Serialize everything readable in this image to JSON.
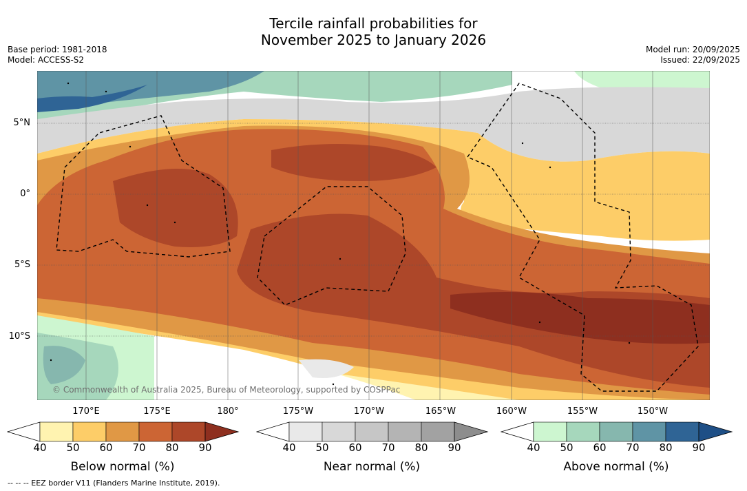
{
  "title": {
    "line1": "Tercile rainfall probabilities for",
    "line2": "November 2025 to January 2026"
  },
  "meta": {
    "base_period": "Base period: 1981-2018",
    "model": "Model: ACCESS-S2",
    "model_run": "Model run: 20/09/2025",
    "issued": "Issued: 22/09/2025"
  },
  "axes": {
    "lat_labels": [
      "5°N",
      "0°",
      "5°S",
      "10°S"
    ],
    "lon_labels": [
      "170°E",
      "175°E",
      "180°",
      "175°W",
      "170°W",
      "165°W",
      "160°W",
      "155°W",
      "150°W"
    ]
  },
  "copyright": "© Commonwealth of Australia 2025, Bureau of Meteorology, supported by COSPPac",
  "colorbars": [
    {
      "title": "Below normal (%)",
      "ticks": [
        "40",
        "50",
        "60",
        "70",
        "80",
        "90"
      ],
      "colors": [
        "#fff3b0",
        "#fdcd68",
        "#e09845",
        "#cc6534",
        "#ad4729",
        "#8e2f1f"
      ]
    },
    {
      "title": "Near normal (%)",
      "ticks": [
        "40",
        "50",
        "60",
        "70",
        "80",
        "90"
      ],
      "colors": [
        "#e9e9e9",
        "#d8d8d8",
        "#c6c6c6",
        "#b4b4b4",
        "#a2a2a2",
        "#8d8d8d"
      ]
    },
    {
      "title": "Above normal (%)",
      "ticks": [
        "40",
        "50",
        "60",
        "70",
        "80",
        "90"
      ],
      "colors": [
        "#cdf6d0",
        "#a6d7bc",
        "#86b7ae",
        "#5f94a5",
        "#2f6495",
        "#1e4f86"
      ]
    }
  ],
  "footer": "--  --  -- EEZ border V11 (Flanders Marine Institute, 2019)."
}
